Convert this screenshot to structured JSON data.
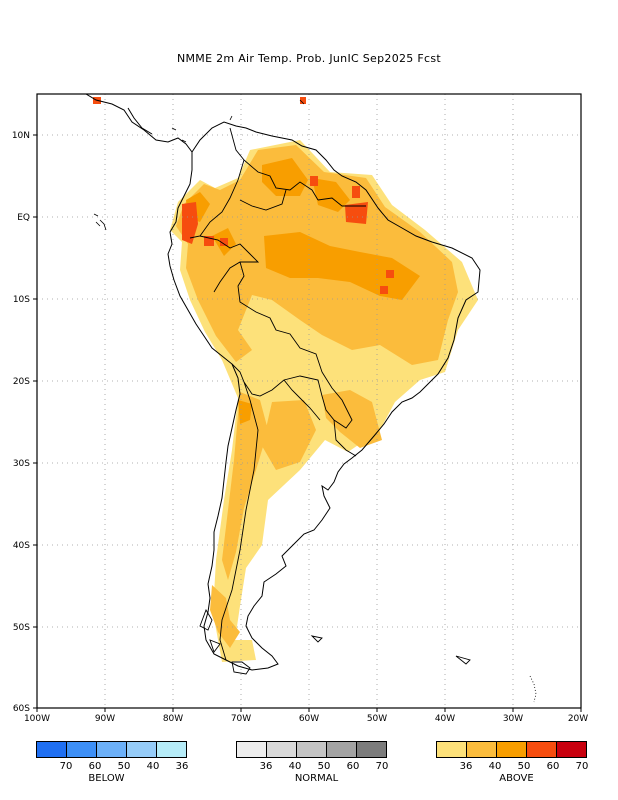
{
  "title": "NMME 2m Air Temp. Prob. JunIC  Sep2025 Fcst",
  "lat_labels": [
    "10N",
    "EQ",
    "10S",
    "20S",
    "30S",
    "40S",
    "50S",
    "60S"
  ],
  "lon_labels": [
    "100W",
    "90W",
    "80W",
    "70W",
    "60W",
    "50W",
    "40W",
    "30W",
    "20W"
  ],
  "legends": [
    {
      "name": "BELOW",
      "colors": [
        "#1f6ff2",
        "#3d8ff6",
        "#6cb0f8",
        "#96ccf8",
        "#b6ecf8"
      ],
      "ticks": [
        "70",
        "60",
        "50",
        "40",
        "36"
      ]
    },
    {
      "name": "NORMAL",
      "colors": [
        "#ededed",
        "#d9d9d9",
        "#c4c4c4",
        "#a3a3a3",
        "#7c7c7c"
      ],
      "ticks": [
        "36",
        "40",
        "50",
        "60",
        "70"
      ]
    },
    {
      "name": "ABOVE",
      "colors": [
        "#fde17a",
        "#fbbc3c",
        "#f89e00",
        "#f64d0f",
        "#c8000e"
      ],
      "ticks": [
        "36",
        "40",
        "50",
        "60",
        "70"
      ]
    }
  ]
}
